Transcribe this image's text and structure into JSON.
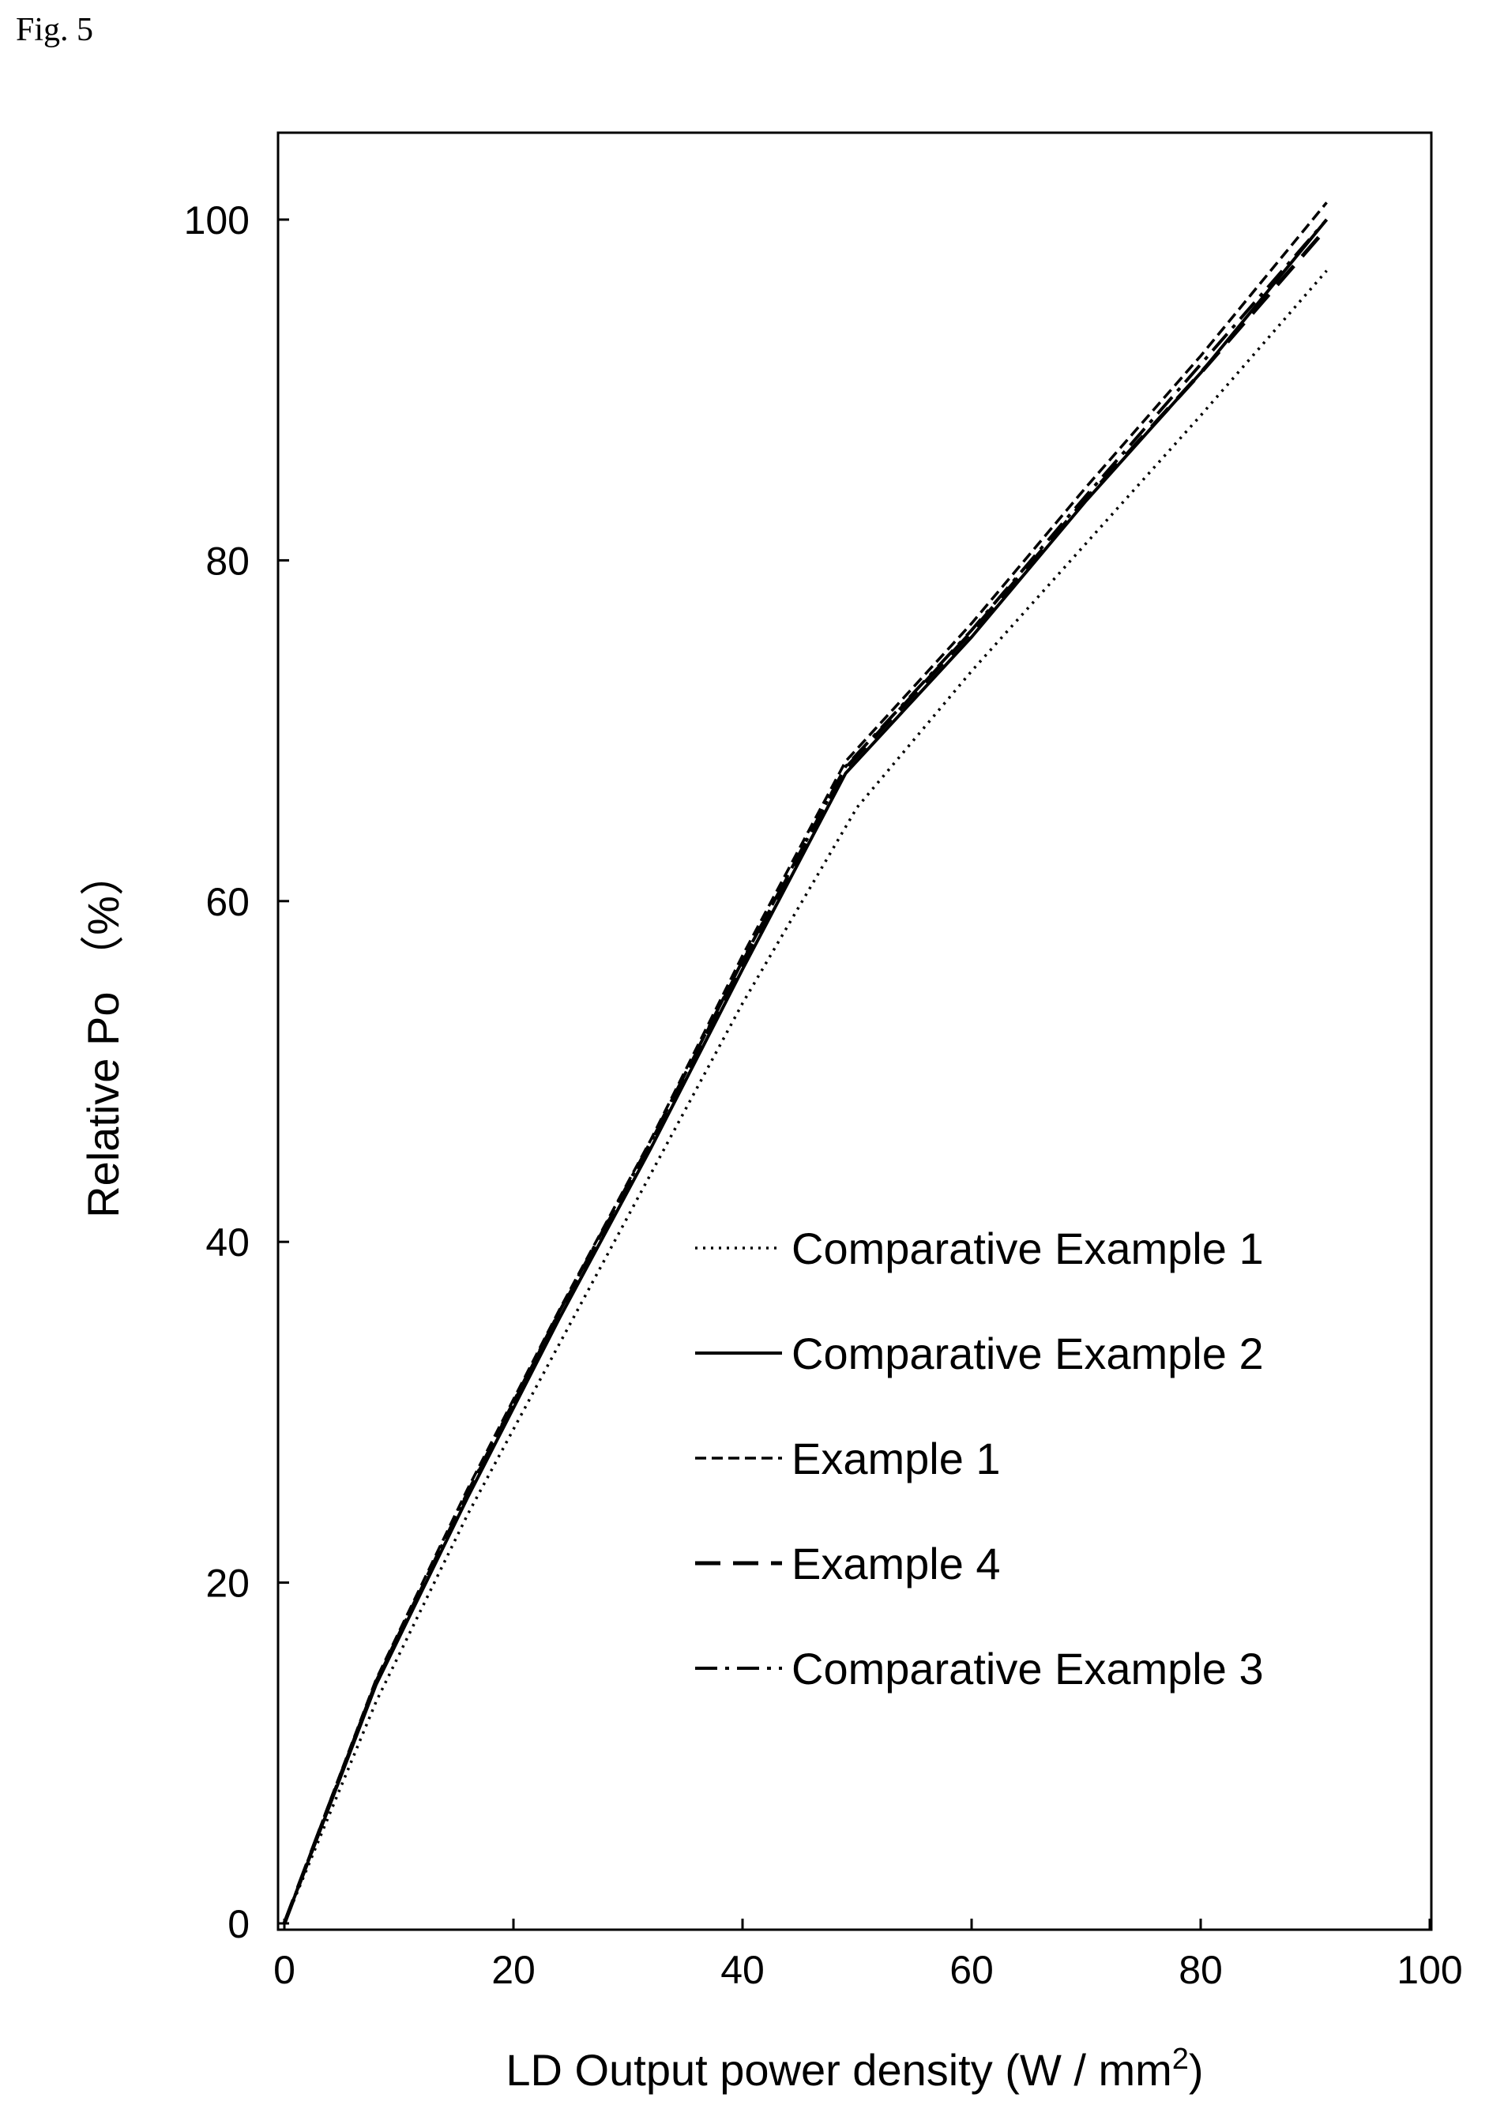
{
  "figure_label": "Fig.  5",
  "chart_data": {
    "type": "line",
    "title": "",
    "xlabel": "LD Output  power density  (W / mm",
    "xlabel_superscript": "2",
    "xlabel_suffix": ")",
    "ylabel": "Relative Po （%）",
    "xlim": [
      0,
      100
    ],
    "ylim": [
      0,
      105
    ],
    "xticks": [
      0,
      20,
      40,
      60,
      80,
      100
    ],
    "yticks": [
      0,
      20,
      40,
      60,
      80,
      100
    ],
    "xtick_labels": [
      "0",
      "20",
      "40",
      "60",
      "80",
      "100"
    ],
    "ytick_labels": [
      "0",
      "20",
      "40",
      "60",
      "80",
      "100"
    ],
    "grid": false,
    "legend_position": "lower-right",
    "series": [
      {
        "name": "Comparative Example 1",
        "style": "dotted",
        "x": [
          0,
          4,
          8,
          16,
          24,
          32,
          40,
          50,
          60,
          70,
          80,
          91
        ],
        "y": [
          0,
          6.5,
          13,
          24,
          34,
          44,
          54,
          65.5,
          73.5,
          81,
          88.5,
          97
        ]
      },
      {
        "name": "Comparative Example 2",
        "style": "solid",
        "x": [
          0,
          4,
          8,
          16,
          24,
          32,
          40,
          49,
          60,
          70,
          80,
          91
        ],
        "y": [
          0,
          7,
          14,
          25,
          35.5,
          45.5,
          56,
          67.5,
          75.5,
          83.5,
          91,
          100
        ]
      },
      {
        "name": "Example 1",
        "style": "short-dash",
        "x": [
          0,
          4,
          8,
          16,
          24,
          32,
          40,
          49,
          60,
          70,
          80,
          91
        ],
        "y": [
          0,
          7.2,
          14.3,
          25.5,
          36,
          46,
          56.8,
          68.2,
          76.3,
          84.3,
          92,
          101
        ]
      },
      {
        "name": "Example 4",
        "style": "long-dash",
        "x": [
          0,
          4,
          8,
          16,
          24,
          32,
          40,
          49,
          60,
          70,
          80,
          91
        ],
        "y": [
          0,
          7.1,
          14.1,
          25.2,
          35.8,
          45.8,
          56.4,
          67.8,
          75.8,
          83.6,
          91,
          99.5
        ]
      },
      {
        "name": "Comparative Example 3",
        "style": "dash-dot",
        "x": [
          0,
          4,
          8,
          16,
          24,
          32,
          40,
          49,
          60,
          70,
          80,
          91
        ],
        "y": [
          0,
          7.1,
          14.2,
          25.3,
          35.9,
          45.9,
          56.5,
          67.9,
          75.9,
          83.8,
          91.5,
          100
        ]
      }
    ]
  }
}
